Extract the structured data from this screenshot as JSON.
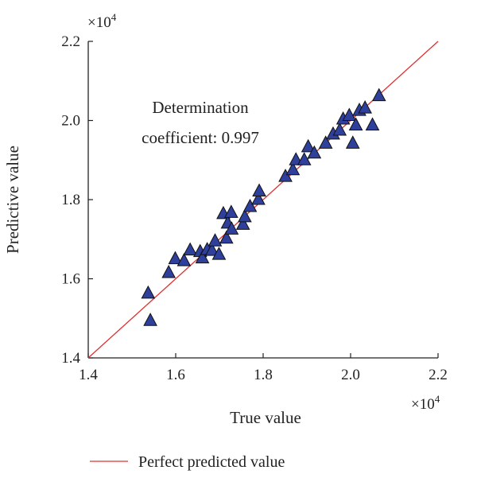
{
  "chart_data": {
    "type": "scatter",
    "xlabel": "True value",
    "ylabel": "Predictive value",
    "xlim": [
      1.4,
      2.2
    ],
    "ylim": [
      1.4,
      2.2
    ],
    "x_ticks": [
      "1.4",
      "1.6",
      "1.8",
      "2.0",
      "2.2"
    ],
    "y_ticks": [
      "1.4",
      "1.6",
      "1.8",
      "2.0",
      "2.2"
    ],
    "x_multiplier": "×10",
    "y_multiplier": "×10",
    "multiplier_exponent": "4",
    "annotation": [
      "Determination",
      "coefficient: 0.997"
    ],
    "grid": false,
    "legend_position": "bottom",
    "series": [
      {
        "name": "",
        "marker": "triangle",
        "color": "#2e3f9c",
        "edge_color": "#111111",
        "points": [
          [
            1.537,
            1.563
          ],
          [
            1.542,
            1.494
          ],
          [
            1.584,
            1.615
          ],
          [
            1.599,
            1.65
          ],
          [
            1.619,
            1.645
          ],
          [
            1.633,
            1.672
          ],
          [
            1.656,
            1.668
          ],
          [
            1.661,
            1.652
          ],
          [
            1.672,
            1.673
          ],
          [
            1.683,
            1.671
          ],
          [
            1.69,
            1.695
          ],
          [
            1.699,
            1.661
          ],
          [
            1.709,
            1.764
          ],
          [
            1.716,
            1.702
          ],
          [
            1.719,
            1.74
          ],
          [
            1.728,
            1.725
          ],
          [
            1.727,
            1.767
          ],
          [
            1.754,
            1.737
          ],
          [
            1.758,
            1.756
          ],
          [
            1.77,
            1.782
          ],
          [
            1.789,
            1.8
          ],
          [
            1.791,
            1.821
          ],
          [
            1.851,
            1.858
          ],
          [
            1.868,
            1.875
          ],
          [
            1.875,
            1.9
          ],
          [
            1.894,
            1.9
          ],
          [
            1.903,
            1.933
          ],
          [
            1.917,
            1.917
          ],
          [
            1.943,
            1.942
          ],
          [
            1.96,
            1.965
          ],
          [
            1.975,
            1.975
          ],
          [
            1.983,
            2.003
          ],
          [
            1.997,
            2.012
          ],
          [
            2.005,
            1.942
          ],
          [
            2.012,
            1.988
          ],
          [
            2.02,
            2.025
          ],
          [
            2.033,
            2.031
          ],
          [
            2.05,
            1.988
          ],
          [
            2.065,
            2.062
          ]
        ]
      }
    ],
    "reference_line": {
      "label": "Perfect predicted value",
      "color": "#e03030",
      "x": [
        1.4,
        2.2
      ],
      "y": [
        1.4,
        2.2
      ]
    }
  }
}
